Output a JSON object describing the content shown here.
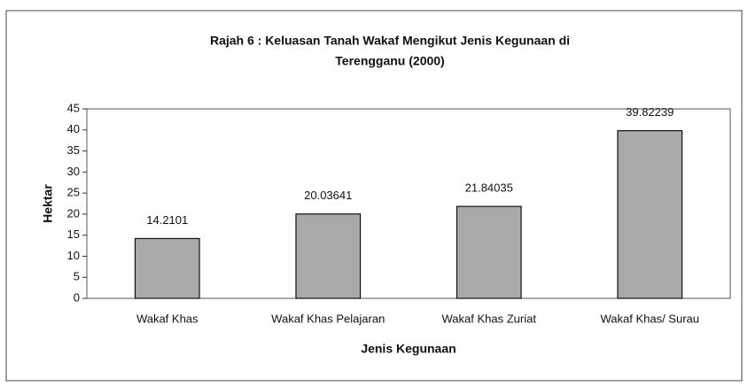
{
  "chart_data": {
    "type": "bar",
    "title": [
      "Rajah 6 : Keluasan Tanah Wakaf Mengikut Jenis Kegunaan di",
      "Terengganu (2000)"
    ],
    "xlabel": "Jenis Kegunaan",
    "ylabel": "Hektar",
    "categories": [
      "Wakaf Khas",
      "Wakaf Khas Pelajaran",
      "Wakaf Khas Zuriat",
      "Wakaf Khas/ Surau"
    ],
    "values": [
      14.2101,
      20.03641,
      21.84035,
      39.82239
    ],
    "color": "#a9a9a9",
    "ylim": [
      0,
      45
    ],
    "yticks": [
      0,
      5,
      10,
      15,
      20,
      25,
      30,
      35,
      40,
      45
    ],
    "grid": false
  }
}
